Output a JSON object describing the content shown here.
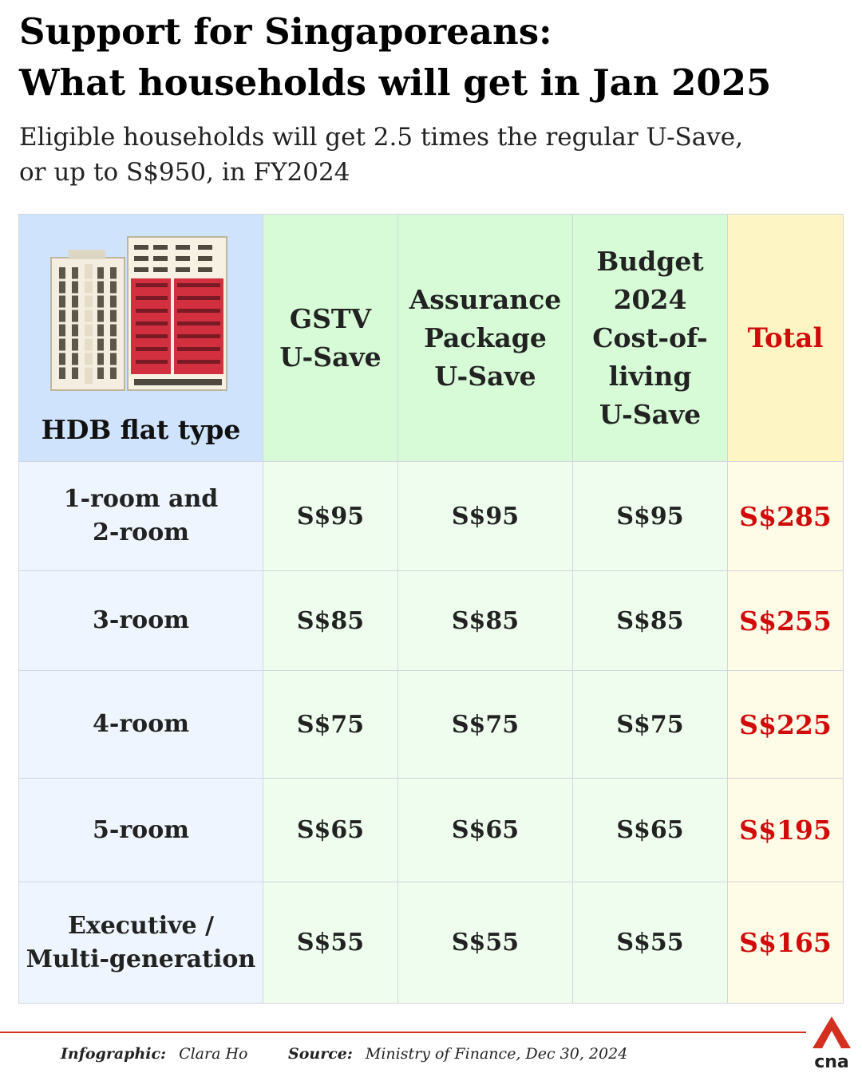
{
  "title_line1": "Support for Singaporeans:",
  "title_line2": "What households will get in Jan 2025",
  "subtitle_line1": "Eligible households will get 2.5 times the regular U-Save,",
  "subtitle_line2": "or up to S$950, in FY2024",
  "table": {
    "headers": {
      "flat_type": "HDB flat type",
      "gstv": [
        "GSTV",
        "U-Save"
      ],
      "assurance": [
        "Assurance",
        "Package",
        "U-Save"
      ],
      "budget": [
        "Budget",
        "2024",
        "Cost-of-",
        "living",
        "U-Save"
      ],
      "total": "Total"
    },
    "rows": [
      {
        "flat_line1": "1-room and",
        "flat_line2": "2-room",
        "gstv": "S$95",
        "assurance": "S$95",
        "budget": "S$95",
        "total": "S$285"
      },
      {
        "flat_line1": "3-room",
        "flat_line2": "",
        "gstv": "S$85",
        "assurance": "S$85",
        "budget": "S$85",
        "total": "S$255"
      },
      {
        "flat_line1": "4-room",
        "flat_line2": "",
        "gstv": "S$75",
        "assurance": "S$75",
        "budget": "S$75",
        "total": "S$225"
      },
      {
        "flat_line1": "5-room",
        "flat_line2": "",
        "gstv": "S$65",
        "assurance": "S$65",
        "budget": "S$65",
        "total": "S$195"
      },
      {
        "flat_line1": "Executive /",
        "flat_line2": "Multi-generation",
        "gstv": "S$55",
        "assurance": "S$55",
        "budget": "S$55",
        "total": "S$165"
      }
    ]
  },
  "footer": {
    "infographic_label": "Infographic:",
    "infographic_name": "Clara Ho",
    "source_label": "Source:",
    "source_text": "Ministry of Finance, Dec 30, 2024",
    "logo_text": "cna"
  },
  "colors": {
    "total_red": "#d10a0a",
    "flat_blue": "#cfe3fc",
    "green": "#d6fbd6",
    "yellow": "#fdf5c4",
    "brand_red": "#d4301f"
  }
}
